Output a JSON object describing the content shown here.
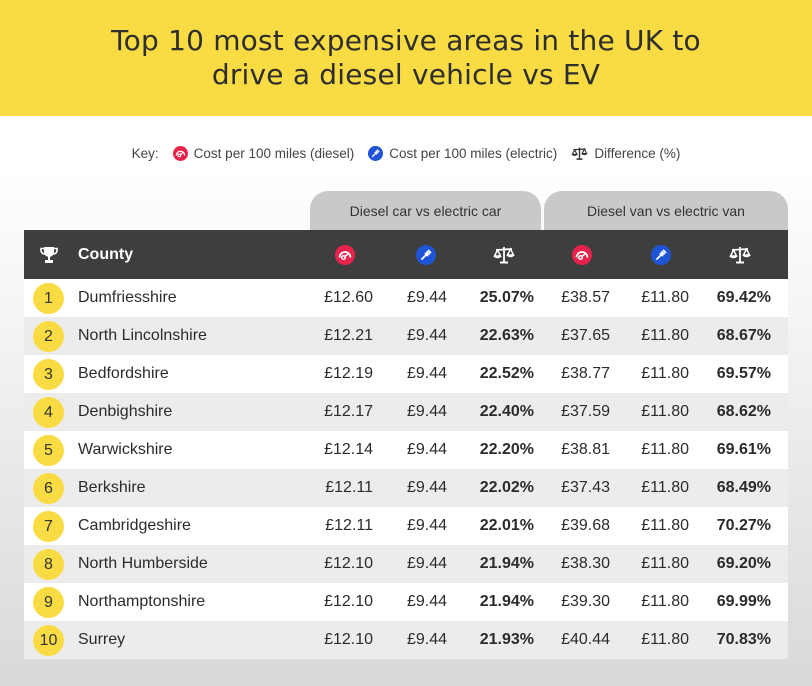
{
  "title": "Top 10 most expensive areas in the UK to drive a diesel vehicle vs EV",
  "key": {
    "label": "Key:",
    "diesel": "Cost per 100 miles (diesel)",
    "electric": "Cost per 100 miles (electric)",
    "difference": "Difference (%)"
  },
  "groups": {
    "car": "Diesel car vs electric car",
    "van": "Diesel van vs electric van"
  },
  "header": {
    "county": "County"
  },
  "colors": {
    "brand_yellow": "#f9dc43",
    "diesel_red": "#e8224a",
    "electric_blue": "#1f54d6",
    "header_dark": "#3e3e3e"
  },
  "icons": {
    "rank": "trophy-icon",
    "diesel": "fuel-gauge-icon",
    "electric": "ev-plug-icon",
    "difference": "scales-icon"
  },
  "chart_data": {
    "type": "table",
    "title": "Top 10 most expensive areas in the UK to drive a diesel vehicle vs EV",
    "columns": [
      "Rank",
      "County",
      "Car diesel",
      "Car electric",
      "Car difference",
      "Van diesel",
      "Van electric",
      "Van difference"
    ],
    "rows": [
      {
        "rank": "1",
        "county": "Dumfriesshire",
        "car_diesel": "£12.60",
        "car_electric": "£9.44",
        "car_diff": "25.07%",
        "van_diesel": "£38.57",
        "van_electric": "£11.80",
        "van_diff": "69.42%"
      },
      {
        "rank": "2",
        "county": "North Lincolnshire",
        "car_diesel": "£12.21",
        "car_electric": "£9.44",
        "car_diff": "22.63%",
        "van_diesel": "£37.65",
        "van_electric": "£11.80",
        "van_diff": "68.67%"
      },
      {
        "rank": "3",
        "county": "Bedfordshire",
        "car_diesel": "£12.19",
        "car_electric": "£9.44",
        "car_diff": "22.52%",
        "van_diesel": "£38.77",
        "van_electric": "£11.80",
        "van_diff": "69.57%"
      },
      {
        "rank": "4",
        "county": "Denbighshire",
        "car_diesel": "£12.17",
        "car_electric": "£9.44",
        "car_diff": "22.40%",
        "van_diesel": "£37.59",
        "van_electric": "£11.80",
        "van_diff": "68.62%"
      },
      {
        "rank": "5",
        "county": "Warwickshire",
        "car_diesel": "£12.14",
        "car_electric": "£9.44",
        "car_diff": "22.20%",
        "van_diesel": "£38.81",
        "van_electric": "£11.80",
        "van_diff": "69.61%"
      },
      {
        "rank": "6",
        "county": "Berkshire",
        "car_diesel": "£12.11",
        "car_electric": "£9.44",
        "car_diff": "22.02%",
        "van_diesel": "£37.43",
        "van_electric": "£11.80",
        "van_diff": "68.49%"
      },
      {
        "rank": "7",
        "county": "Cambridgeshire",
        "car_diesel": "£12.11",
        "car_electric": "£9.44",
        "car_diff": "22.01%",
        "van_diesel": "£39.68",
        "van_electric": "£11.80",
        "van_diff": "70.27%"
      },
      {
        "rank": "8",
        "county": "North Humberside",
        "car_diesel": "£12.10",
        "car_electric": "£9.44",
        "car_diff": "21.94%",
        "van_diesel": "£38.30",
        "van_electric": "£11.80",
        "van_diff": "69.20%"
      },
      {
        "rank": "9",
        "county": "Northamptonshire",
        "car_diesel": "£12.10",
        "car_electric": "£9.44",
        "car_diff": "21.94%",
        "van_diesel": "£39.30",
        "van_electric": "£11.80",
        "van_diff": "69.99%"
      },
      {
        "rank": "10",
        "county": "Surrey",
        "car_diesel": "£12.10",
        "car_electric": "£9.44",
        "car_diff": "21.93%",
        "van_diesel": "£40.44",
        "van_electric": "£11.80",
        "van_diff": "70.83%"
      }
    ]
  }
}
